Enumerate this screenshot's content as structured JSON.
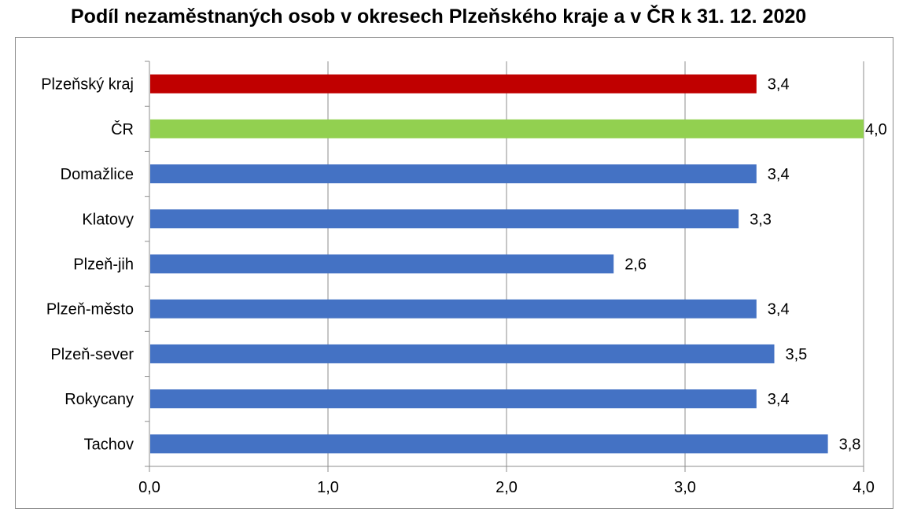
{
  "chart_data": {
    "type": "bar",
    "orientation": "horizontal",
    "title": "Podíl nezaměstnaných osob v okresech Plzeňského kraje a v ČR k 31. 12. 2020",
    "xlabel": "",
    "ylabel": "",
    "xlim": [
      0,
      4
    ],
    "xticks": [
      "0,0",
      "1,0",
      "2,0",
      "3,0",
      "4,0"
    ],
    "grid": "vertical",
    "legend": "none",
    "categories": [
      "Plzeňský kraj",
      "ČR",
      "Domažlice",
      "Klatovy",
      "Plzeň-jih",
      "Plzeň-město",
      "Plzeň-sever",
      "Rokycany",
      "Tachov"
    ],
    "values": [
      3.4,
      4.0,
      3.4,
      3.3,
      2.6,
      3.4,
      3.5,
      3.4,
      3.8
    ],
    "value_labels": [
      "3,4",
      "4,0",
      "3,4",
      "3,3",
      "2,6",
      "3,4",
      "3,5",
      "3,4",
      "3,8"
    ],
    "colors": [
      "#c00000",
      "#92d050",
      "#4472c4",
      "#4472c4",
      "#4472c4",
      "#4472c4",
      "#4472c4",
      "#4472c4",
      "#4472c4"
    ]
  }
}
